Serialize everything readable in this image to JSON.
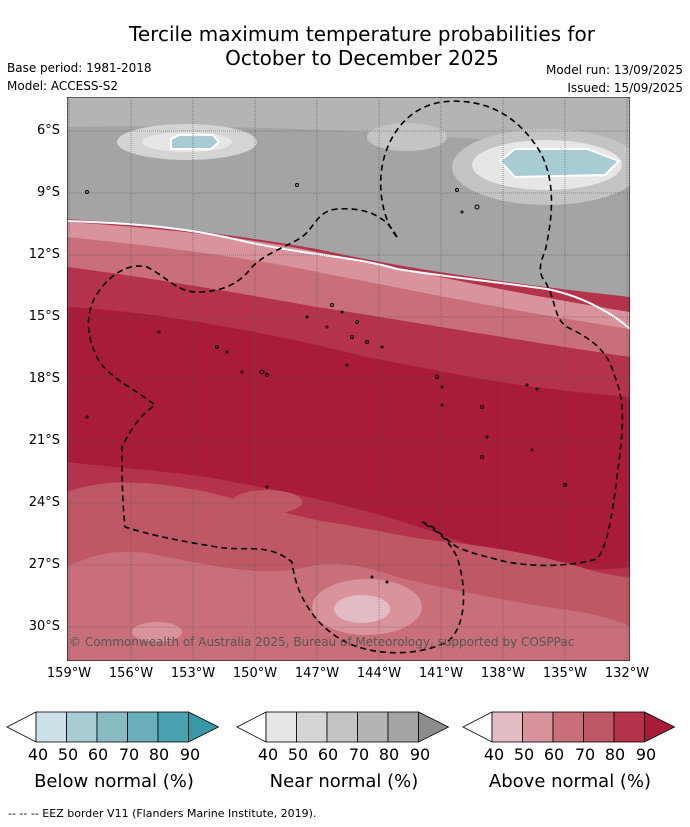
{
  "title_line1": "Tercile maximum temperature probabilities for",
  "title_line2": "October to December 2025",
  "base_period": "Base period: 1981-2018",
  "model": "Model: ACCESS-S2",
  "model_run": "Model run: 13/09/2025",
  "issued": "Issued: 15/09/2025",
  "copyright": "© Commonwealth of Australia 2025, Bureau of Meteorology, supported by COSPPac",
  "lat_labels": [
    "6°S",
    "9°S",
    "12°S",
    "15°S",
    "18°S",
    "21°S",
    "24°S",
    "27°S",
    "30°S"
  ],
  "lon_labels": [
    "159°W",
    "156°W",
    "153°W",
    "150°W",
    "147°W",
    "144°W",
    "141°W",
    "138°W",
    "135°W",
    "132°W"
  ],
  "colorbars": [
    {
      "title": "Below normal (%)",
      "ticks": [
        "40",
        "50",
        "60",
        "70",
        "80",
        "90"
      ],
      "colors": [
        "#ffffff",
        "#cde2e8",
        "#a8ccd4",
        "#8abbc5",
        "#6aaeba",
        "#4aa2b0",
        "#3a97a7"
      ]
    },
    {
      "title": "Near normal (%)",
      "ticks": [
        "40",
        "50",
        "60",
        "70",
        "80",
        "90"
      ],
      "colors": [
        "#ffffff",
        "#e6e6e6",
        "#d4d4d4",
        "#c4c4c4",
        "#b4b4b4",
        "#a4a4a4",
        "#8c8c8c"
      ]
    },
    {
      "title": "Above normal (%)",
      "ticks": [
        "40",
        "50",
        "60",
        "70",
        "80",
        "90"
      ],
      "colors": [
        "#ffffff",
        "#e2bcc2",
        "#d8939c",
        "#c96f7a",
        "#bf5865",
        "#b5334a",
        "#a81c3a"
      ]
    }
  ],
  "footer": "--  --  -- EEZ border V11 (Flanders Marine Institute, 2019)."
}
